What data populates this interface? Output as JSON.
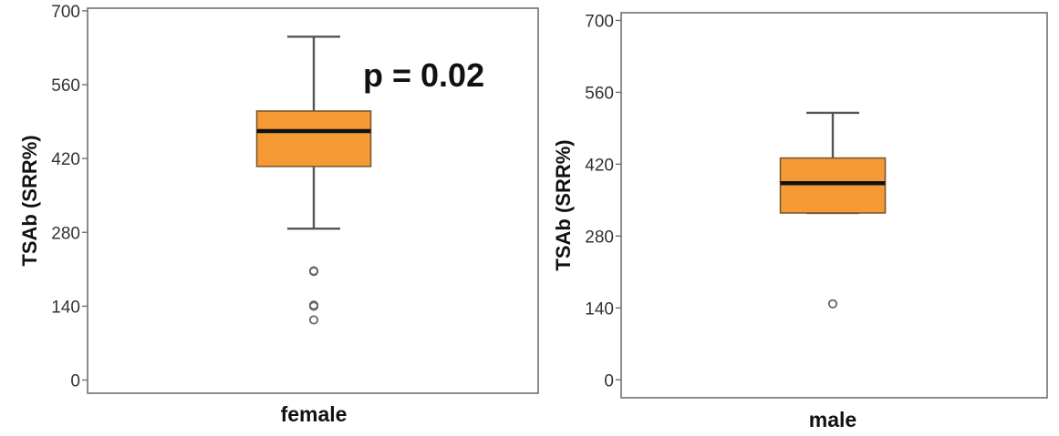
{
  "chart_data": [
    {
      "type": "box",
      "xlabel": "",
      "ylabel": "TSAb (SRR%)",
      "ylim": [
        -25,
        705
      ],
      "yticks": [
        0,
        140,
        280,
        420,
        560,
        700
      ],
      "grid": false,
      "categories": [
        "female"
      ],
      "boxes": [
        {
          "category": "female",
          "whisker_low": 287,
          "q1": 405,
          "median": 472,
          "q3": 510,
          "whisker_high": 651,
          "outliers": [
            207,
            206,
            142,
            140,
            114
          ]
        }
      ],
      "annotation": "p = 0.02",
      "colors": {
        "box_fill": "#F59A34",
        "box_edge": "#7a5a30",
        "median": "#111111",
        "whisker": "#555555",
        "outlier": "#666666"
      }
    },
    {
      "type": "box",
      "xlabel": "",
      "ylabel": "TSAb (SRR%)",
      "ylim": [
        -35,
        715
      ],
      "yticks": [
        0,
        140,
        280,
        420,
        560,
        700
      ],
      "grid": false,
      "categories": [
        "male"
      ],
      "boxes": [
        {
          "category": "male",
          "whisker_low": 325,
          "q1": 325,
          "median": 383,
          "q3": 432,
          "whisker_high": 520,
          "outliers": [
            148
          ]
        }
      ],
      "annotation": "",
      "colors": {
        "box_fill": "#F59A34",
        "box_edge": "#7a5a30",
        "median": "#111111",
        "whisker": "#555555",
        "outlier": "#666666"
      }
    }
  ]
}
